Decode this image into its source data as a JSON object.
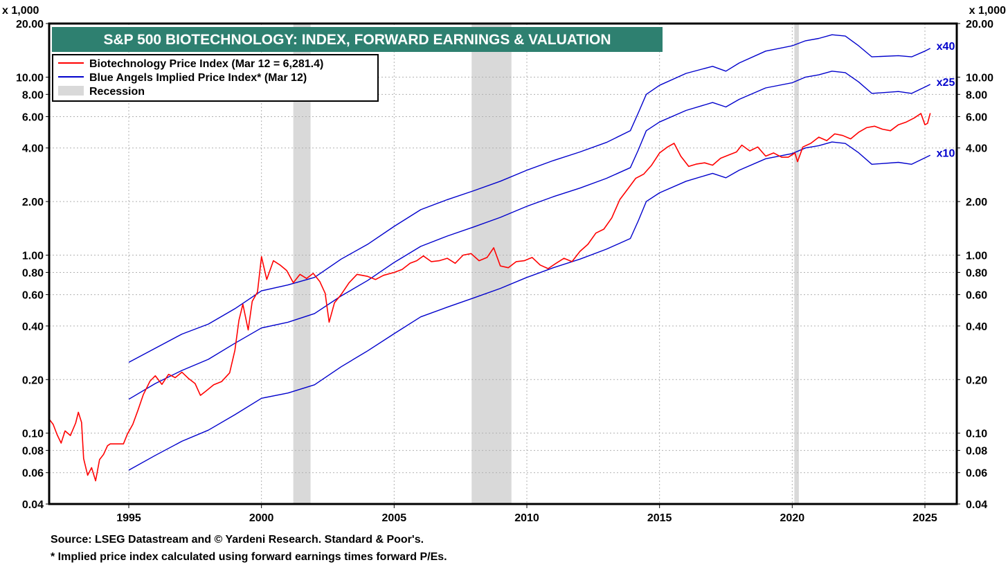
{
  "colors": {
    "price": "#ff0000",
    "implied": "#0000cc",
    "recession": "#d9d9d9",
    "title_bg": "#2e8070",
    "grid": "#b0b0b0"
  },
  "chart_data": {
    "type": "line",
    "title": "S&P 500 BIOTECHNOLOGY: INDEX, FORWARD EARNINGS & VALUATION",
    "y_unit_label": "x 1,000",
    "y_scale": "log",
    "ylim": [
      0.04,
      20
    ],
    "xlim": [
      1992.0,
      2026.2
    ],
    "y_ticks": [
      {
        "v": 0.04,
        "label": "0.04"
      },
      {
        "v": 0.06,
        "label": "0.06"
      },
      {
        "v": 0.08,
        "label": "0.08"
      },
      {
        "v": 0.1,
        "label": "0.10"
      },
      {
        "v": 0.2,
        "label": "0.20"
      },
      {
        "v": 0.4,
        "label": "0.40"
      },
      {
        "v": 0.6,
        "label": "0.60"
      },
      {
        "v": 0.8,
        "label": "0.80"
      },
      {
        "v": 1.0,
        "label": "1.00"
      },
      {
        "v": 2.0,
        "label": "2.00"
      },
      {
        "v": 4.0,
        "label": "4.00"
      },
      {
        "v": 6.0,
        "label": "6.00"
      },
      {
        "v": 8.0,
        "label": "8.00"
      },
      {
        "v": 10.0,
        "label": "10.00"
      },
      {
        "v": 20.0,
        "label": "20.00"
      }
    ],
    "x_ticks": [
      {
        "v": 1995,
        "label": "1995"
      },
      {
        "v": 2000,
        "label": "2000"
      },
      {
        "v": 2005,
        "label": "2005"
      },
      {
        "v": 2010,
        "label": "2010"
      },
      {
        "v": 2015,
        "label": "2015"
      },
      {
        "v": 2020,
        "label": "2020"
      },
      {
        "v": 2025,
        "label": "2025"
      }
    ],
    "legend": {
      "placement": "top-left",
      "entries": [
        {
          "key": "price",
          "label": "Biotechnology Price Index (Mar 12 = 6,281.4)"
        },
        {
          "key": "implied",
          "label": "Blue Angels Implied Price Index* (Mar 12)"
        },
        {
          "key": "recession",
          "label": "Recession"
        }
      ]
    },
    "recessions": [
      {
        "start": 2001.2,
        "end": 2001.85
      },
      {
        "start": 2007.92,
        "end": 2009.42
      },
      {
        "start": 2020.08,
        "end": 2020.25
      }
    ],
    "multiplier_labels": [
      {
        "label": "x40",
        "series": "x40"
      },
      {
        "label": "x25",
        "series": "x25"
      },
      {
        "label": "x10",
        "series": "x10"
      }
    ],
    "series": [
      {
        "name": "Biotechnology Price Index",
        "key": "price",
        "points": [
          [
            1992.0,
            0.12
          ],
          [
            1992.15,
            0.112
          ],
          [
            1992.3,
            0.098
          ],
          [
            1992.45,
            0.088
          ],
          [
            1992.6,
            0.103
          ],
          [
            1992.8,
            0.097
          ],
          [
            1993.0,
            0.114
          ],
          [
            1993.1,
            0.131
          ],
          [
            1993.22,
            0.115
          ],
          [
            1993.3,
            0.072
          ],
          [
            1993.45,
            0.058
          ],
          [
            1993.6,
            0.064
          ],
          [
            1993.75,
            0.054
          ],
          [
            1993.9,
            0.071
          ],
          [
            1994.05,
            0.076
          ],
          [
            1994.2,
            0.085
          ],
          [
            1994.3,
            0.087
          ],
          [
            1994.55,
            0.087
          ],
          [
            1994.8,
            0.087
          ],
          [
            1994.95,
            0.099
          ],
          [
            1995.15,
            0.112
          ],
          [
            1995.35,
            0.135
          ],
          [
            1995.55,
            0.165
          ],
          [
            1995.8,
            0.196
          ],
          [
            1996.0,
            0.21
          ],
          [
            1996.25,
            0.188
          ],
          [
            1996.5,
            0.214
          ],
          [
            1996.75,
            0.205
          ],
          [
            1997.0,
            0.22
          ],
          [
            1997.25,
            0.203
          ],
          [
            1997.5,
            0.19
          ],
          [
            1997.7,
            0.163
          ],
          [
            1997.9,
            0.172
          ],
          [
            1998.2,
            0.187
          ],
          [
            1998.5,
            0.195
          ],
          [
            1998.8,
            0.218
          ],
          [
            1999.0,
            0.292
          ],
          [
            1999.15,
            0.43
          ],
          [
            1999.3,
            0.53
          ],
          [
            1999.5,
            0.38
          ],
          [
            1999.65,
            0.55
          ],
          [
            1999.85,
            0.62
          ],
          [
            2000.0,
            0.98
          ],
          [
            2000.2,
            0.73
          ],
          [
            2000.45,
            0.93
          ],
          [
            2000.7,
            0.88
          ],
          [
            2000.95,
            0.82
          ],
          [
            2001.2,
            0.7
          ],
          [
            2001.45,
            0.78
          ],
          [
            2001.7,
            0.74
          ],
          [
            2001.95,
            0.79
          ],
          [
            2002.2,
            0.71
          ],
          [
            2002.4,
            0.61
          ],
          [
            2002.55,
            0.42
          ],
          [
            2002.75,
            0.54
          ],
          [
            2003.0,
            0.6
          ],
          [
            2003.3,
            0.7
          ],
          [
            2003.6,
            0.78
          ],
          [
            2004.0,
            0.76
          ],
          [
            2004.3,
            0.73
          ],
          [
            2004.6,
            0.77
          ],
          [
            2005.0,
            0.8
          ],
          [
            2005.3,
            0.83
          ],
          [
            2005.6,
            0.9
          ],
          [
            2005.85,
            0.93
          ],
          [
            2006.1,
            0.99
          ],
          [
            2006.4,
            0.92
          ],
          [
            2006.7,
            0.93
          ],
          [
            2007.0,
            0.96
          ],
          [
            2007.3,
            0.9
          ],
          [
            2007.6,
            1.0
          ],
          [
            2007.9,
            1.02
          ],
          [
            2008.2,
            0.93
          ],
          [
            2008.5,
            0.97
          ],
          [
            2008.75,
            1.1
          ],
          [
            2009.0,
            0.87
          ],
          [
            2009.3,
            0.85
          ],
          [
            2009.6,
            0.92
          ],
          [
            2009.9,
            0.93
          ],
          [
            2010.2,
            0.97
          ],
          [
            2010.5,
            0.88
          ],
          [
            2010.8,
            0.84
          ],
          [
            2011.1,
            0.9
          ],
          [
            2011.4,
            0.96
          ],
          [
            2011.7,
            0.92
          ],
          [
            2012.0,
            1.05
          ],
          [
            2012.3,
            1.15
          ],
          [
            2012.6,
            1.33
          ],
          [
            2012.9,
            1.4
          ],
          [
            2013.2,
            1.62
          ],
          [
            2013.5,
            2.05
          ],
          [
            2013.8,
            2.35
          ],
          [
            2014.1,
            2.7
          ],
          [
            2014.4,
            2.85
          ],
          [
            2014.7,
            3.2
          ],
          [
            2015.0,
            3.75
          ],
          [
            2015.3,
            4.05
          ],
          [
            2015.55,
            4.25
          ],
          [
            2015.8,
            3.6
          ],
          [
            2016.1,
            3.15
          ],
          [
            2016.4,
            3.25
          ],
          [
            2016.7,
            3.3
          ],
          [
            2017.0,
            3.2
          ],
          [
            2017.3,
            3.5
          ],
          [
            2017.6,
            3.65
          ],
          [
            2017.9,
            3.8
          ],
          [
            2018.1,
            4.15
          ],
          [
            2018.4,
            3.85
          ],
          [
            2018.7,
            4.05
          ],
          [
            2019.0,
            3.6
          ],
          [
            2019.3,
            3.75
          ],
          [
            2019.6,
            3.55
          ],
          [
            2019.85,
            3.55
          ],
          [
            2020.1,
            3.75
          ],
          [
            2020.2,
            3.35
          ],
          [
            2020.4,
            4.05
          ],
          [
            2020.7,
            4.25
          ],
          [
            2021.0,
            4.6
          ],
          [
            2021.3,
            4.4
          ],
          [
            2021.6,
            4.8
          ],
          [
            2021.9,
            4.7
          ],
          [
            2022.2,
            4.5
          ],
          [
            2022.5,
            4.9
          ],
          [
            2022.8,
            5.2
          ],
          [
            2023.1,
            5.3
          ],
          [
            2023.4,
            5.1
          ],
          [
            2023.7,
            5.0
          ],
          [
            2024.0,
            5.4
          ],
          [
            2024.3,
            5.6
          ],
          [
            2024.6,
            5.9
          ],
          [
            2024.85,
            6.25
          ],
          [
            2025.0,
            5.4
          ],
          [
            2025.1,
            5.5
          ],
          [
            2025.2,
            6.28
          ]
        ]
      },
      {
        "name": "Blue Angels Implied Price Index x40",
        "key": "x40",
        "points": [
          [
            1995.0,
            0.25
          ],
          [
            1996.0,
            0.3
          ],
          [
            1997.0,
            0.36
          ],
          [
            1998.0,
            0.41
          ],
          [
            1999.0,
            0.5
          ],
          [
            2000.0,
            0.63
          ],
          [
            2001.0,
            0.68
          ],
          [
            2002.0,
            0.75
          ],
          [
            2003.0,
            0.95
          ],
          [
            2004.0,
            1.15
          ],
          [
            2005.0,
            1.45
          ],
          [
            2006.0,
            1.8
          ],
          [
            2007.0,
            2.05
          ],
          [
            2008.0,
            2.3
          ],
          [
            2009.0,
            2.6
          ],
          [
            2010.0,
            3.0
          ],
          [
            2011.0,
            3.4
          ],
          [
            2012.0,
            3.8
          ],
          [
            2013.0,
            4.3
          ],
          [
            2013.9,
            5.0
          ],
          [
            2014.2,
            6.3
          ],
          [
            2014.5,
            8.0
          ],
          [
            2015.0,
            9.0
          ],
          [
            2016.0,
            10.5
          ],
          [
            2017.0,
            11.5
          ],
          [
            2017.5,
            10.8
          ],
          [
            2018.0,
            12.0
          ],
          [
            2019.0,
            14.0
          ],
          [
            2020.0,
            15.0
          ],
          [
            2020.5,
            16.0
          ],
          [
            2021.0,
            16.5
          ],
          [
            2021.5,
            17.3
          ],
          [
            2022.0,
            17.0
          ],
          [
            2022.5,
            15.0
          ],
          [
            2023.0,
            13.0
          ],
          [
            2024.0,
            13.2
          ],
          [
            2024.5,
            13.0
          ],
          [
            2025.0,
            14.0
          ],
          [
            2025.2,
            14.5
          ]
        ]
      },
      {
        "name": "Blue Angels Implied Price Index x25",
        "key": "x25",
        "points": [
          [
            1995.0,
            0.155
          ],
          [
            1996.0,
            0.19
          ],
          [
            1997.0,
            0.225
          ],
          [
            1998.0,
            0.26
          ],
          [
            1999.0,
            0.32
          ],
          [
            2000.0,
            0.39
          ],
          [
            2001.0,
            0.42
          ],
          [
            2002.0,
            0.47
          ],
          [
            2003.0,
            0.59
          ],
          [
            2004.0,
            0.72
          ],
          [
            2005.0,
            0.91
          ],
          [
            2006.0,
            1.12
          ],
          [
            2007.0,
            1.28
          ],
          [
            2008.0,
            1.44
          ],
          [
            2009.0,
            1.63
          ],
          [
            2010.0,
            1.88
          ],
          [
            2011.0,
            2.13
          ],
          [
            2012.0,
            2.38
          ],
          [
            2013.0,
            2.7
          ],
          [
            2013.9,
            3.1
          ],
          [
            2014.2,
            3.9
          ],
          [
            2014.5,
            5.0
          ],
          [
            2015.0,
            5.6
          ],
          [
            2016.0,
            6.5
          ],
          [
            2017.0,
            7.2
          ],
          [
            2017.5,
            6.8
          ],
          [
            2018.0,
            7.5
          ],
          [
            2019.0,
            8.7
          ],
          [
            2020.0,
            9.3
          ],
          [
            2020.5,
            10.0
          ],
          [
            2021.0,
            10.3
          ],
          [
            2021.5,
            10.8
          ],
          [
            2022.0,
            10.6
          ],
          [
            2022.5,
            9.4
          ],
          [
            2023.0,
            8.1
          ],
          [
            2024.0,
            8.3
          ],
          [
            2024.5,
            8.1
          ],
          [
            2025.0,
            8.8
          ],
          [
            2025.2,
            9.1
          ]
        ]
      },
      {
        "name": "Blue Angels Implied Price Index x10",
        "key": "x10",
        "points": [
          [
            1995.0,
            0.062
          ],
          [
            1996.0,
            0.075
          ],
          [
            1997.0,
            0.09
          ],
          [
            1998.0,
            0.104
          ],
          [
            1999.0,
            0.127
          ],
          [
            2000.0,
            0.157
          ],
          [
            2001.0,
            0.168
          ],
          [
            2002.0,
            0.187
          ],
          [
            2003.0,
            0.236
          ],
          [
            2004.0,
            0.29
          ],
          [
            2005.0,
            0.362
          ],
          [
            2006.0,
            0.45
          ],
          [
            2007.0,
            0.51
          ],
          [
            2008.0,
            0.575
          ],
          [
            2009.0,
            0.65
          ],
          [
            2010.0,
            0.75
          ],
          [
            2011.0,
            0.85
          ],
          [
            2012.0,
            0.95
          ],
          [
            2013.0,
            1.08
          ],
          [
            2013.9,
            1.24
          ],
          [
            2014.2,
            1.56
          ],
          [
            2014.5,
            2.0
          ],
          [
            2015.0,
            2.24
          ],
          [
            2016.0,
            2.6
          ],
          [
            2017.0,
            2.88
          ],
          [
            2017.5,
            2.72
          ],
          [
            2018.0,
            3.0
          ],
          [
            2019.0,
            3.48
          ],
          [
            2020.0,
            3.72
          ],
          [
            2020.5,
            4.0
          ],
          [
            2021.0,
            4.12
          ],
          [
            2021.5,
            4.32
          ],
          [
            2022.0,
            4.24
          ],
          [
            2022.5,
            3.76
          ],
          [
            2023.0,
            3.24
          ],
          [
            2024.0,
            3.32
          ],
          [
            2024.5,
            3.24
          ],
          [
            2025.0,
            3.52
          ],
          [
            2025.2,
            3.64
          ]
        ]
      }
    ]
  },
  "footnotes": {
    "source": "Source: LSEG Datastream and © Yardeni Research. Standard & Poor's.",
    "note": "* Implied price index calculated using forward earnings times forward P/Es."
  }
}
